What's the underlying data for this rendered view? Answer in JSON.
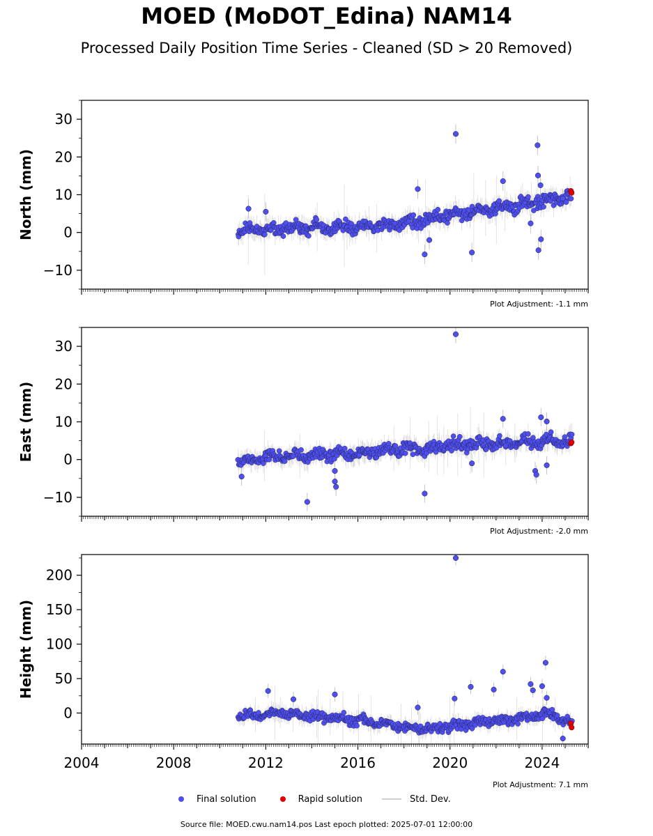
{
  "page": {
    "title": "MOED (MoDOT_Edina) NAM14",
    "subtitle": "Processed Daily Position Time Series - Cleaned (SD > 20 Removed)",
    "source_note": "Source file: MOED.cwu.nam14.pos  Last epoch plotted: 2025-07-01 12:00:00"
  },
  "legend": {
    "final_label": "Final solution",
    "rapid_label": "Rapid solution",
    "std_label": "Std. Dev."
  },
  "colors": {
    "final": "#4f4fef",
    "rapid": "#e00000",
    "std": "#bdbdbd"
  },
  "chart_data": [
    {
      "type": "scatter",
      "ylabel": "North (mm)",
      "xlim": [
        2004,
        2026
      ],
      "ylim": [
        -15,
        35
      ],
      "yticks": [
        -10,
        0,
        10,
        20,
        30
      ],
      "plot_adjustment": "Plot Adjustment: -1.1 mm",
      "trend": [
        [
          2010.8,
          0.5
        ],
        [
          2014,
          1.3
        ],
        [
          2016.9,
          1.8
        ],
        [
          2018,
          2.5
        ],
        [
          2020,
          4.5
        ],
        [
          2022,
          6.5
        ],
        [
          2025.3,
          9.5
        ]
      ],
      "noise": 1.6,
      "outliers": [
        [
          2011.25,
          6.3
        ],
        [
          2012.0,
          5.5
        ],
        [
          2018.6,
          11.5
        ],
        [
          2018.9,
          -5.8
        ],
        [
          2019.1,
          -2.0
        ],
        [
          2020.25,
          26.1
        ],
        [
          2020.95,
          -5.3
        ],
        [
          2022.3,
          13.6
        ],
        [
          2023.5,
          2.4
        ],
        [
          2023.8,
          23.1
        ],
        [
          2023.82,
          15.1
        ],
        [
          2023.84,
          -4.7
        ],
        [
          2023.95,
          -1.8
        ],
        [
          2023.93,
          12.5
        ],
        [
          2024.9,
          9.0
        ]
      ],
      "rapid": [
        [
          2025.25,
          11.0
        ],
        [
          2025.28,
          10.5
        ]
      ]
    },
    {
      "type": "scatter",
      "ylabel": "East (mm)",
      "xlim": [
        2004,
        2026
      ],
      "ylim": [
        -15,
        35
      ],
      "yticks": [
        -10,
        0,
        10,
        20,
        30
      ],
      "plot_adjustment": "Plot Adjustment: -2.0 mm",
      "trend": [
        [
          2010.8,
          -0.2
        ],
        [
          2013,
          0.8
        ],
        [
          2016,
          1.8
        ],
        [
          2017,
          2.5
        ],
        [
          2019,
          3.0
        ],
        [
          2021,
          4.2
        ],
        [
          2023,
          4.5
        ],
        [
          2025.3,
          5.0
        ]
      ],
      "noise": 1.5,
      "outliers": [
        [
          2010.95,
          -4.5
        ],
        [
          2013.8,
          -11.2
        ],
        [
          2015.0,
          -5.8
        ],
        [
          2015.05,
          -7.2
        ],
        [
          2015.0,
          -3.0
        ],
        [
          2018.9,
          -9.0
        ],
        [
          2020.25,
          33.2
        ],
        [
          2020.95,
          -1.0
        ],
        [
          2022.3,
          10.8
        ],
        [
          2023.7,
          -3.0
        ],
        [
          2023.75,
          -4.0
        ],
        [
          2023.95,
          11.2
        ],
        [
          2024.2,
          10.1
        ],
        [
          2024.2,
          -1.5
        ]
      ],
      "rapid": [
        [
          2025.25,
          4.3
        ],
        [
          2025.28,
          4.6
        ]
      ]
    },
    {
      "type": "scatter",
      "ylabel": "Height (mm)",
      "xlabel": "",
      "xlim": [
        2004,
        2026
      ],
      "ylim": [
        -45,
        230
      ],
      "yticks": [
        0,
        50,
        100,
        150,
        200
      ],
      "xticks": [
        2004,
        2008,
        2012,
        2016,
        2020,
        2024
      ],
      "plot_adjustment": "Plot Adjustment: 7.1 mm",
      "trend": [
        [
          2010.8,
          -5
        ],
        [
          2012.5,
          0
        ],
        [
          2014,
          -5
        ],
        [
          2016,
          -10
        ],
        [
          2018,
          -20
        ],
        [
          2019.5,
          -22
        ],
        [
          2021,
          -15
        ],
        [
          2022.5,
          -10
        ],
        [
          2024.2,
          0
        ],
        [
          2025.3,
          -15
        ]
      ],
      "noise": 6.5,
      "outliers": [
        [
          2012.1,
          32
        ],
        [
          2013.2,
          20
        ],
        [
          2015.0,
          27
        ],
        [
          2018.6,
          8
        ],
        [
          2020.25,
          225
        ],
        [
          2020.2,
          21
        ],
        [
          2020.9,
          38
        ],
        [
          2021.9,
          34
        ],
        [
          2022.3,
          60
        ],
        [
          2023.5,
          42
        ],
        [
          2023.6,
          33
        ],
        [
          2024.0,
          39
        ],
        [
          2024.15,
          73
        ],
        [
          2024.2,
          22
        ],
        [
          2024.9,
          -37
        ]
      ],
      "rapid": [
        [
          2025.25,
          -15
        ],
        [
          2025.28,
          -21
        ]
      ]
    }
  ]
}
